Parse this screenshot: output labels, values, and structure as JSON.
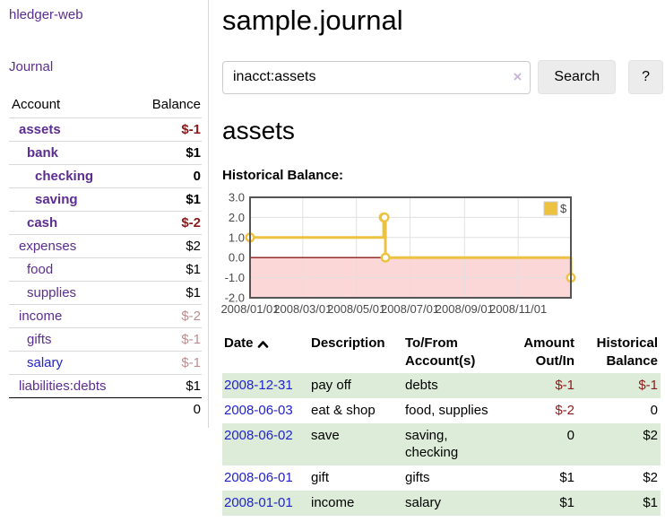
{
  "brand": "hledger-web",
  "nav": {
    "journal": "Journal"
  },
  "colors": {
    "link_purple": "#5c2d91",
    "link_blue": "#2222cc",
    "negative_strong": "#8b1a1a",
    "negative_faint": "#bd8d8d",
    "row_stripe_green": "#ddecd9",
    "chart_line_gold": "#edc240",
    "chart_negative_bg": "#fcd7d7",
    "chart_zero_line": "#8b1a1a"
  },
  "sidebar": {
    "columns": {
      "account": "Account",
      "balance": "Balance"
    },
    "accounts": [
      {
        "name": "assets",
        "balance": "$-1",
        "indent": 1,
        "bold": true,
        "balance_tone": "neg-strong"
      },
      {
        "name": "bank",
        "balance": "$1",
        "indent": 2,
        "bold": true,
        "balance_tone": "normal"
      },
      {
        "name": "checking",
        "balance": "0",
        "indent": 3,
        "bold": true,
        "balance_tone": "normal"
      },
      {
        "name": "saving",
        "balance": "$1",
        "indent": 3,
        "bold": true,
        "balance_tone": "normal"
      },
      {
        "name": "cash",
        "balance": "$-2",
        "indent": 2,
        "bold": true,
        "balance_tone": "neg-strong"
      },
      {
        "name": "expenses",
        "balance": "$2",
        "indent": 1,
        "bold": false,
        "balance_tone": "normal"
      },
      {
        "name": "food",
        "balance": "$1",
        "indent": 2,
        "bold": false,
        "balance_tone": "normal"
      },
      {
        "name": "supplies",
        "balance": "$1",
        "indent": 2,
        "bold": false,
        "balance_tone": "normal"
      },
      {
        "name": "income",
        "balance": "$-2",
        "indent": 1,
        "bold": false,
        "balance_tone": "neg-faint"
      },
      {
        "name": "gifts",
        "balance": "$-1",
        "indent": 2,
        "bold": false,
        "balance_tone": "neg-faint"
      },
      {
        "name": "salary",
        "balance": "$-1",
        "indent": 2,
        "bold": false,
        "balance_tone": "neg-faint",
        "link_tone": "blue"
      },
      {
        "name": "liabilities:debts",
        "balance": "$1",
        "indent": 1,
        "bold": false,
        "balance_tone": "normal"
      }
    ],
    "total": "0"
  },
  "header": {
    "title": "sample.journal"
  },
  "search": {
    "value": "inacct:assets",
    "clear": "×",
    "submit_label": "Search",
    "help_label": "?"
  },
  "account_page": {
    "title": "assets",
    "chart_heading": "Historical Balance:"
  },
  "chart_data": {
    "type": "line",
    "title": "Historical Balance:",
    "legend_position": "top-right",
    "grid": true,
    "x_range": [
      "2008-01-01",
      "2008-12-31"
    ],
    "y_range": [
      -2,
      3
    ],
    "x_ticks": [
      {
        "date": "2008-01-01",
        "label": "2008/01/01"
      },
      {
        "date": "2008-03-01",
        "label": "2008/03/01"
      },
      {
        "date": "2008-05-01",
        "label": "2008/05/01"
      },
      {
        "date": "2008-07-01",
        "label": "2008/07/01"
      },
      {
        "date": "2008-09-01",
        "label": "2008/09/01"
      },
      {
        "date": "2008-11-01",
        "label": "2008/11/01"
      }
    ],
    "y_ticks": [
      {
        "value": 3,
        "label": "3.0"
      },
      {
        "value": 2,
        "label": "2.0"
      },
      {
        "value": 1,
        "label": "1.0"
      },
      {
        "value": 0,
        "label": "0.0"
      },
      {
        "value": -1,
        "label": "-1.0"
      },
      {
        "value": -2,
        "label": "-2.0"
      }
    ],
    "series": [
      {
        "name": "$",
        "type": "step",
        "color": "#edc240",
        "points": [
          {
            "date": "2008-01-01",
            "value": 1
          },
          {
            "date": "2008-06-01",
            "value": 2
          },
          {
            "date": "2008-06-02",
            "value": 2
          },
          {
            "date": "2008-06-03",
            "value": 0
          },
          {
            "date": "2008-12-31",
            "value": -1
          }
        ]
      }
    ],
    "negative_region": {
      "from": 0,
      "to": -2,
      "color": "#fcd7d7"
    },
    "zero_line_color": "#8b1a1a"
  },
  "register": {
    "columns": [
      {
        "label": "Date",
        "sorted": "asc"
      },
      {
        "label": "Description"
      },
      {
        "label": "To/From Account(s)"
      },
      {
        "label": "Amount Out/In"
      },
      {
        "label": "Historical Balance"
      }
    ],
    "rows": [
      {
        "date": "2008-12-31",
        "description": "pay off",
        "accounts": "debts",
        "amount": "$-1",
        "balance": "$-1"
      },
      {
        "date": "2008-06-03",
        "description": "eat & shop",
        "accounts": "food, supplies",
        "amount": "$-2",
        "balance": "0"
      },
      {
        "date": "2008-06-02",
        "description": "save",
        "accounts": "saving, checking",
        "amount": "0",
        "balance": "$2"
      },
      {
        "date": "2008-06-01",
        "description": "gift",
        "accounts": "gifts",
        "amount": "$1",
        "balance": "$2"
      },
      {
        "date": "2008-01-01",
        "description": "income",
        "accounts": "salary",
        "amount": "$1",
        "balance": "$1"
      }
    ]
  }
}
